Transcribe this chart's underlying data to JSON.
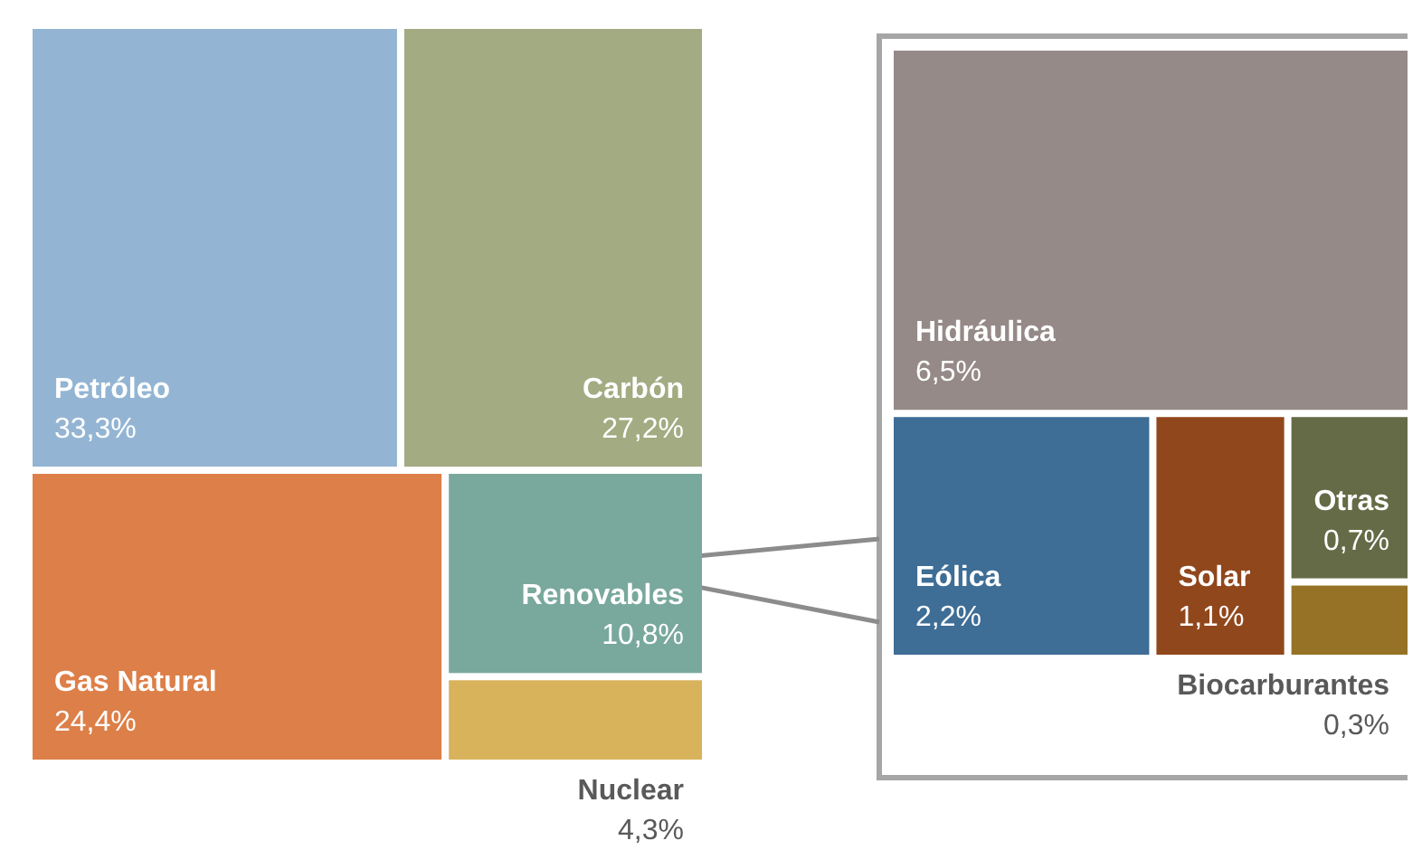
{
  "chart_data": [
    {
      "type": "other",
      "categories": [
        "Petróleo",
        "Carbón",
        "Gas Natural",
        "Renovables",
        "Nuclear"
      ],
      "values": [
        33.3,
        27.2,
        24.4,
        10.8,
        4.3
      ],
      "value_labels": [
        "33,3%",
        "27,2%",
        "24,4%",
        "10,8%",
        "4,3%"
      ],
      "colors": [
        "#93b5d3",
        "#a3ab82",
        "#dd7f48",
        "#79a89c",
        "#d8b35c"
      ]
    },
    {
      "type": "other",
      "categories": [
        "Hidráulica",
        "Eólica",
        "Solar",
        "Otras",
        "Biocarburantes"
      ],
      "values": [
        6.5,
        2.2,
        1.1,
        0.7,
        0.3
      ],
      "value_labels": [
        "6,5%",
        "2,2%",
        "1,1%",
        "0,7%",
        "0,3%"
      ],
      "colors": [
        "#958a88",
        "#3e6d96",
        "#91471c",
        "#646b46",
        "#957225"
      ]
    }
  ]
}
